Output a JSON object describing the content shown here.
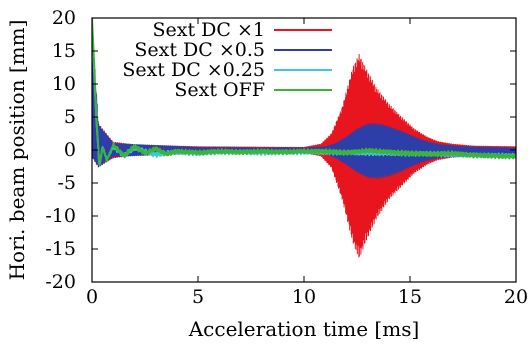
{
  "chart_data": {
    "type": "line",
    "title": "",
    "xlabel": "Acceleration time [ms]",
    "ylabel": "Hori. beam position [mm]",
    "xlim": [
      0,
      20
    ],
    "ylim": [
      -20,
      20
    ],
    "x_ticks": [
      "0",
      "5",
      "10",
      "15",
      "20"
    ],
    "y_ticks": [
      "-20",
      "-15",
      "-10",
      "-5",
      "0",
      "5",
      "10",
      "15",
      "20"
    ],
    "grid": false,
    "legend": "top-left",
    "series": [
      {
        "name": "Sext DC ×1",
        "color": "#e8141e",
        "envelope": {
          "x": [
            0,
            0.3,
            1,
            2,
            5,
            10,
            10.8,
            11.3,
            11.8,
            12.3,
            12.6,
            12.9,
            13.4,
            14,
            14.6,
            15.2,
            15.8,
            16.3,
            17,
            18,
            20
          ],
          "upper": [
            20,
            4,
            1.2,
            0.8,
            0.5,
            0.4,
            0.9,
            2.5,
            6.5,
            12.5,
            14.5,
            12.5,
            9.5,
            7,
            5,
            3.2,
            2,
            1.3,
            0.9,
            0.6,
            0.5
          ],
          "lower": [
            -1,
            -2.6,
            -1.2,
            -0.8,
            -0.5,
            -0.4,
            -0.9,
            -2.7,
            -7.5,
            -14,
            -16.5,
            -14,
            -10.5,
            -7.5,
            -5.5,
            -3.5,
            -2.2,
            -1.5,
            -1.1,
            -0.9,
            -0.8
          ]
        }
      },
      {
        "name": "Sext DC ×0.5",
        "color": "#2d3ea8",
        "envelope": {
          "x": [
            0,
            0.3,
            1,
            5,
            10,
            11,
            11.5,
            12,
            12.5,
            13,
            13.5,
            14,
            14.5,
            15,
            15.5,
            16,
            16.5,
            17.5,
            18.5,
            20
          ],
          "upper": [
            20,
            4,
            1,
            0.4,
            0.3,
            0.5,
            1,
            2,
            3.2,
            4,
            4,
            3.6,
            3,
            2.3,
            1.6,
            1.1,
            0.8,
            0.5,
            0.4,
            0.3
          ],
          "lower": [
            -1,
            -2.6,
            -1,
            -0.5,
            -0.4,
            -0.6,
            -1.2,
            -2.2,
            -3.4,
            -4.2,
            -4.3,
            -4,
            -3.4,
            -2.6,
            -1.9,
            -1.4,
            -1.1,
            -0.9,
            -0.8,
            -0.8
          ]
        }
      },
      {
        "name": "Sext DC ×0.25",
        "color": "#40c8d8",
        "x": [
          0,
          0.1,
          0.2,
          0.35,
          0.5,
          0.7,
          1,
          1.5,
          2,
          3,
          4,
          5,
          6,
          8,
          10,
          12,
          14,
          16,
          18,
          20
        ],
        "y": [
          19,
          12,
          5,
          -2.5,
          0.5,
          -1.5,
          0.5,
          -0.8,
          0.3,
          -0.7,
          -0.3,
          -0.5,
          -0.3,
          -0.4,
          -0.3,
          -0.4,
          -0.5,
          -0.6,
          -0.8,
          -0.9
        ]
      },
      {
        "name": "Sext OFF",
        "color": "#3cb43c",
        "x": [
          0,
          0.1,
          0.2,
          0.35,
          0.5,
          0.7,
          1,
          1.5,
          2,
          2.5,
          3,
          3.5,
          4,
          5,
          6,
          7,
          8,
          9,
          10,
          11,
          12,
          13,
          14,
          15,
          16,
          17,
          18,
          19,
          20
        ],
        "y": [
          20,
          13,
          5,
          -2.5,
          0.5,
          -1.6,
          0.8,
          -0.9,
          0.6,
          -0.5,
          0.2,
          -0.6,
          -0.2,
          -0.4,
          -0.2,
          -0.3,
          -0.2,
          -0.3,
          -0.2,
          -0.2,
          -0.4,
          -0.1,
          -0.3,
          -0.5,
          -0.6,
          -0.5,
          -0.8,
          -0.9,
          -1
        ]
      }
    ]
  }
}
